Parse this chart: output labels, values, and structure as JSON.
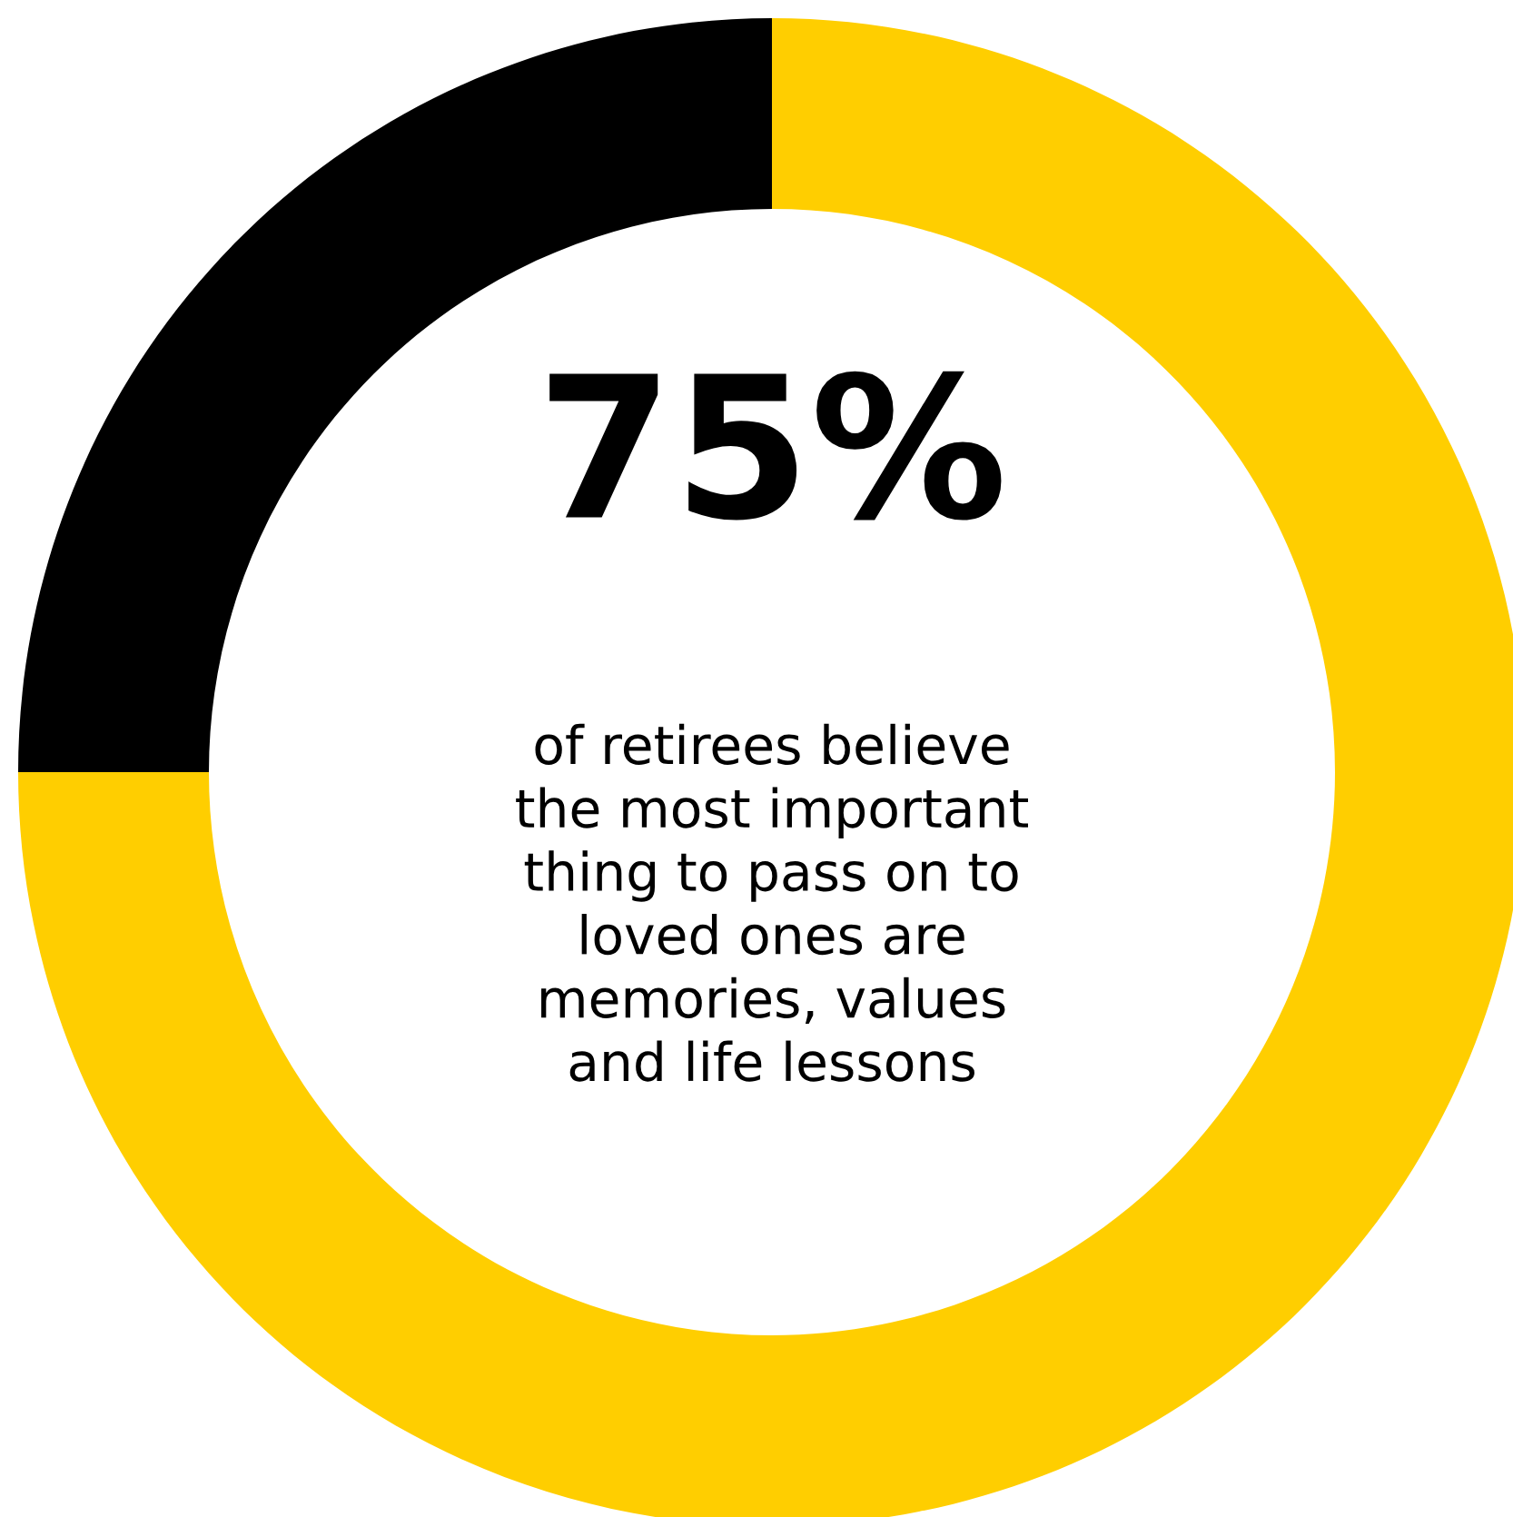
{
  "chart_data": {
    "type": "donut",
    "categories": [
      null,
      null
    ],
    "values": [
      75,
      25
    ],
    "colors": [
      "#ffce00",
      "#000000"
    ],
    "annotations": [
      "75%",
      "of retirees believe\nthe most important\nthing to pass on to\nloved ones are\nmemories, values\nand life lessons"
    ]
  }
}
